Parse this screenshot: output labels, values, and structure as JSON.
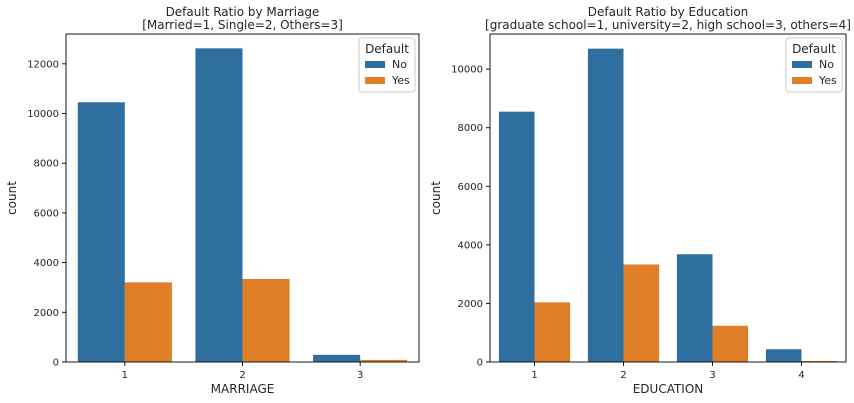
{
  "chart_data": [
    {
      "type": "bar",
      "title_lines": [
        "Default Ratio by Marriage",
        "[Married=1, Single=2, Others=3]"
      ],
      "xlabel": "MARRIAGE",
      "ylabel": "count",
      "categories": [
        "1",
        "2",
        "3"
      ],
      "ylim": [
        0,
        13200
      ],
      "yticks": [
        0,
        2000,
        4000,
        6000,
        8000,
        10000,
        12000
      ],
      "ytick_labels": [
        "0",
        "2000",
        "4000",
        "6000",
        "8000",
        "10000",
        "12000"
      ],
      "grid": false,
      "legend": {
        "title": "Default",
        "position": "top-right"
      },
      "series": [
        {
          "name": "No",
          "color": "#2f6f9f",
          "values": [
            10453,
            12623,
            288
          ]
        },
        {
          "name": "Yes",
          "color": "#e07f28",
          "values": [
            3206,
            3341,
            84
          ]
        }
      ]
    },
    {
      "type": "bar",
      "title_lines": [
        "Default Ratio by Education",
        "[graduate school=1, university=2, high school=3, others=4]"
      ],
      "xlabel": "EDUCATION",
      "ylabel": "count",
      "categories": [
        "1",
        "2",
        "3",
        "4"
      ],
      "ylim": [
        0,
        11200
      ],
      "yticks": [
        0,
        2000,
        4000,
        6000,
        8000,
        10000
      ],
      "ytick_labels": [
        "0",
        "2000",
        "4000",
        "6000",
        "8000",
        "10000"
      ],
      "grid": false,
      "legend": {
        "title": "Default",
        "position": "top-right"
      },
      "series": [
        {
          "name": "No",
          "color": "#2f6f9f",
          "values": [
            8549,
            10700,
            3680,
            435
          ]
        },
        {
          "name": "Yes",
          "color": "#e07f28",
          "values": [
            2036,
            3330,
            1237,
            33
          ]
        }
      ]
    }
  ]
}
